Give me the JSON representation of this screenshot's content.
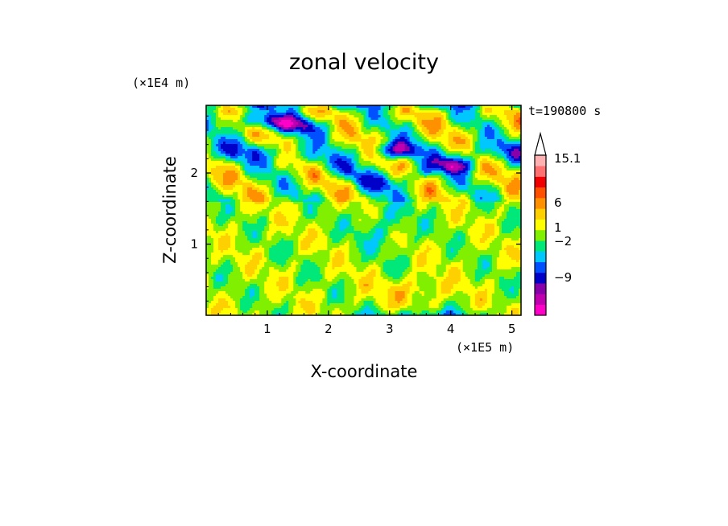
{
  "chart_data": {
    "type": "heatmap",
    "title": "zonal velocity",
    "xlabel": "X-coordinate",
    "ylabel": "Z-coordinate",
    "x_unit": "(×1E5 m)",
    "y_unit": "(×1E4 m)",
    "time_label": "t=190800 s",
    "xlim": [
      0,
      5.15
    ],
    "ylim": [
      0,
      2.95
    ],
    "x_ticks": [
      1,
      2,
      3,
      4,
      5
    ],
    "y_ticks": [
      1,
      2
    ],
    "colorbar": {
      "level_colors": [
        "#ff00c8",
        "#c000b0",
        "#8800aa",
        "#0000c8",
        "#0050ff",
        "#00c8ff",
        "#00e87a",
        "#80f000",
        "#ffff00",
        "#ffd000",
        "#ff9000",
        "#ff5000",
        "#f00000",
        "#ff7070",
        "#ffb0b0"
      ],
      "labels": [
        {
          "text": "15.1",
          "value": 15.1
        },
        {
          "text": "6",
          "value": 6
        },
        {
          "text": "1",
          "value": 1
        },
        {
          "text": "−2",
          "value": -2
        },
        {
          "text": "−9",
          "value": -9
        }
      ]
    },
    "field": {
      "description_grid_x_range": [
        0,
        5.15
      ],
      "description_grid_z_range": [
        0,
        2.95
      ]
    }
  }
}
